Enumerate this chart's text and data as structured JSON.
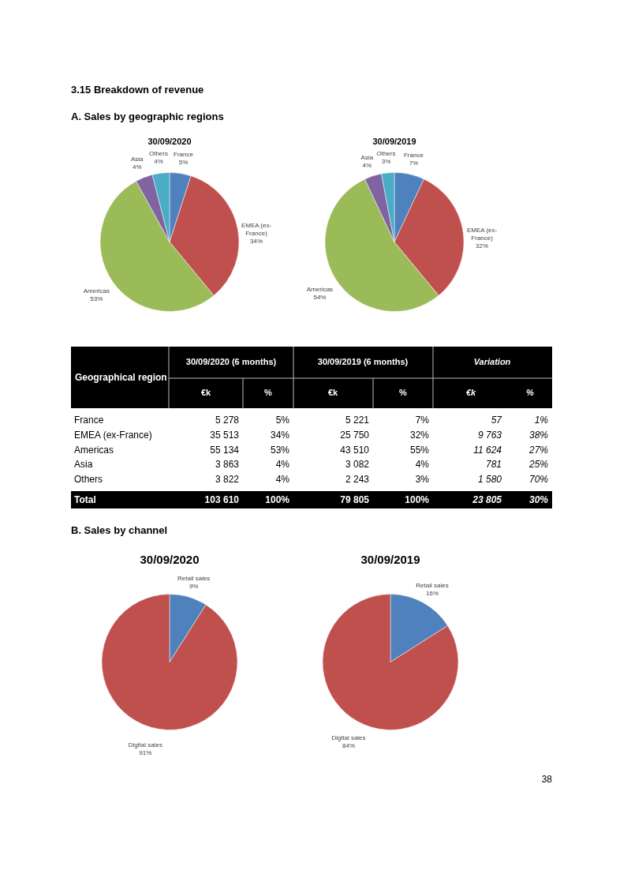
{
  "chart_data": [
    {
      "type": "pie",
      "title": "30/09/2020",
      "categories": [
        "France",
        "EMEA (ex-France)",
        "Americas",
        "Asia",
        "Others"
      ],
      "values": [
        5,
        34,
        53,
        4,
        4
      ],
      "value_labels": [
        "5%",
        "34%",
        "53%",
        "4%",
        "4%"
      ],
      "colors": [
        "#4f81bd",
        "#c0504d",
        "#9bbb59",
        "#8064a2",
        "#4bacc6"
      ],
      "annotations": [
        "3.15   Breakdown of revenue",
        "A.   Sales by geographic regions"
      ]
    },
    {
      "type": "pie",
      "title": "30/09/2019",
      "categories": [
        "France",
        "EMEA (ex-France)",
        "Americas",
        "Asia",
        "Others"
      ],
      "values": [
        7,
        32,
        54,
        4,
        3
      ],
      "value_labels": [
        "7%",
        "32%",
        "54%",
        "4%",
        "3%"
      ],
      "colors": [
        "#4f81bd",
        "#c0504d",
        "#9bbb59",
        "#8064a2",
        "#4bacc6"
      ]
    },
    {
      "type": "other",
      "annotations": [
        "Geographical region",
        "30/09/2020 (6 months)",
        "30/09/2019 (6 months)",
        "Variation",
        "€k",
        "%",
        "€k",
        "%",
        "€k",
        "%",
        "France",
        "5 278",
        "5%",
        "5 221",
        "7%",
        "57",
        "1%",
        "EMEA (ex-France)",
        "35 513",
        "34%",
        "25 750",
        "32%",
        "9 763",
        "38%",
        "Americas",
        "55 134",
        "53%",
        "43 510",
        "55%",
        "11 624",
        "27%",
        "Asia",
        "3 863",
        "4%",
        "3 082",
        "4%",
        "781",
        "25%",
        "Others",
        "3 822",
        "4%",
        "2 243",
        "3%",
        "1 580",
        "70%",
        "Total",
        "103 610",
        "100%",
        "79 805",
        "100%",
        "23 805",
        "30%"
      ]
    },
    {
      "type": "pie",
      "title": "30/09/2020",
      "categories": [
        "Retail sales",
        "Digital sales"
      ],
      "values": [
        9,
        91
      ],
      "value_labels": [
        "9%",
        "91%"
      ],
      "colors": [
        "#4f81bd",
        "#c0504d"
      ],
      "annotations": [
        "B.   Sales by channel"
      ]
    },
    {
      "type": "pie",
      "title": "30/09/2019",
      "categories": [
        "Retail sales",
        "Digital sales"
      ],
      "values": [
        16,
        84
      ],
      "value_labels": [
        "16%",
        "84%"
      ],
      "colors": [
        "#4f81bd",
        "#c0504d"
      ],
      "annotations": [
        "38"
      ]
    }
  ]
}
